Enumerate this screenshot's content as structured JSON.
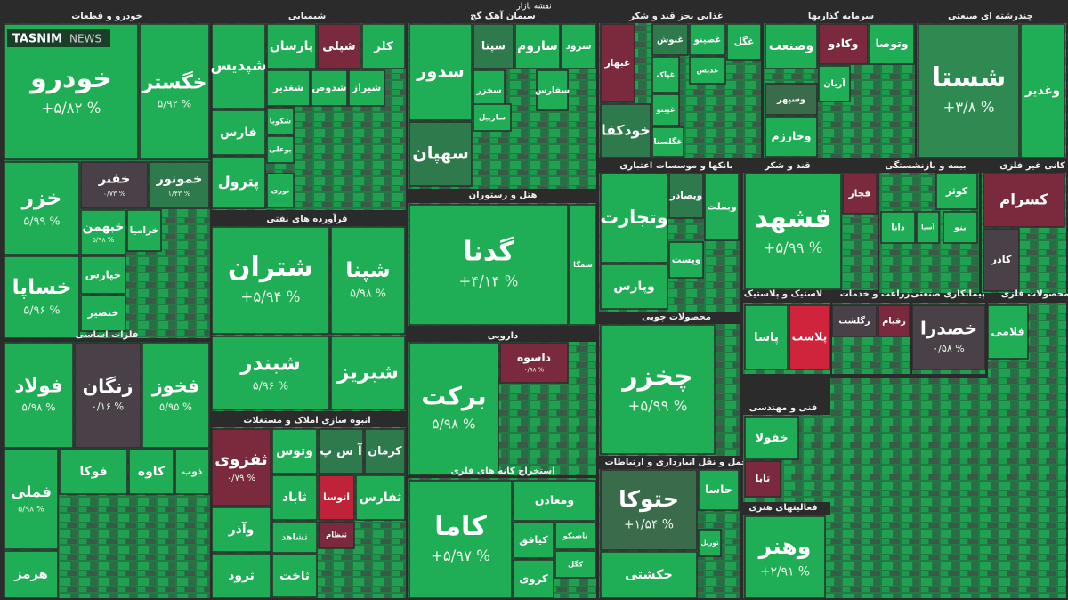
{
  "header": {
    "title": "نقشه بازار"
  },
  "logo": {
    "brand": "TASNIM",
    "suffix": "NEWS"
  },
  "sectors": [
    {
      "title": "خودرو و قطعات",
      "tiles": [
        {
          "label": "خودرو",
          "change": "+۵/۸۲ %",
          "color": "#1fae55"
        },
        {
          "label": "خگستر",
          "change": "۵/۹۲ %",
          "color": "#1fae55"
        },
        {
          "label": "خزر",
          "change": "۵/۹۹ %",
          "color": "#1fae55"
        },
        {
          "label": "خفنر",
          "change": "۰/۷۳ %",
          "color": "#4a4048"
        },
        {
          "label": "خمونور",
          "change": "۱/۴۳ %",
          "color": "#2f7a4c"
        },
        {
          "label": "خساپا",
          "change": "۵/۹۶ %",
          "color": "#1fae55"
        },
        {
          "label": "خبهمن",
          "change": "۵/۹۸ %",
          "color": "#1fae55"
        },
        {
          "label": "خزامیا",
          "color": "#1fae55"
        },
        {
          "label": "خپارس",
          "color": "#1fae55"
        },
        {
          "label": "خنصیر",
          "color": "#1fae55"
        }
      ]
    },
    {
      "title": "فلزات اساسی",
      "tiles": [
        {
          "label": "فولاد",
          "change": "۵/۹۸ %",
          "color": "#1fae55"
        },
        {
          "label": "زنگان",
          "change": "۰/۱۶ %",
          "color": "#4a4048"
        },
        {
          "label": "فخوز",
          "change": "۵/۹۵ %",
          "color": "#1fae55"
        },
        {
          "label": "فملی",
          "change": "۵/۹۸ %",
          "color": "#1fae55"
        },
        {
          "label": "هرمز",
          "color": "#1fae55"
        },
        {
          "label": "فوکا",
          "color": "#1fae55"
        },
        {
          "label": "کاوه",
          "color": "#1fae55"
        },
        {
          "label": "ذوب",
          "color": "#1fae55"
        }
      ]
    },
    {
      "title": "شیمیایی",
      "tiles": [
        {
          "label": "شپدیس",
          "color": "#1fae55"
        },
        {
          "label": "پارسان",
          "color": "#1fae55"
        },
        {
          "label": "شپلی",
          "color": "#7a2a3c"
        },
        {
          "label": "کلر",
          "color": "#1fae55"
        },
        {
          "label": "شغدیر",
          "color": "#1fae55"
        },
        {
          "label": "شدوص",
          "color": "#1fae55"
        },
        {
          "label": "شیراز",
          "color": "#1fae55"
        },
        {
          "label": "فارس",
          "color": "#1fae55"
        },
        {
          "label": "پترول",
          "color": "#1fae55"
        },
        {
          "label": "شکویا",
          "color": "#1fae55"
        },
        {
          "label": "بوعلی",
          "color": "#1fae55"
        },
        {
          "label": "نوری",
          "color": "#1fae55"
        }
      ]
    },
    {
      "title": "فرآورده های نفتی",
      "tiles": [
        {
          "label": "شتران",
          "change": "+۵/۹۴ %",
          "color": "#1fae55"
        },
        {
          "label": "شپنا",
          "change": "۵/۹۸ %",
          "color": "#1fae55"
        },
        {
          "label": "شبندر",
          "change": "۵/۹۶ %",
          "color": "#1fae55"
        },
        {
          "label": "شبریز",
          "color": "#1fae55"
        }
      ]
    },
    {
      "title": "انبوه سازی املاک و مستغلات",
      "tiles": [
        {
          "label": "ثفزوی",
          "change": "۰/۷۹ %",
          "color": "#7a2a3c"
        },
        {
          "label": "وتوس",
          "color": "#1fae55"
        },
        {
          "label": "آ س پ",
          "color": "#2f7a4c"
        },
        {
          "label": "کرمان",
          "color": "#2f7a4c"
        },
        {
          "label": "ثاباد",
          "color": "#1fae55"
        },
        {
          "label": "اتوسا",
          "color": "#c0223a"
        },
        {
          "label": "ثفارس",
          "color": "#1fae55"
        },
        {
          "label": "ثنظام",
          "color": "#7a2a3c"
        },
        {
          "label": "ثشاهد",
          "color": "#1fae55"
        },
        {
          "label": "وآذر",
          "color": "#1fae55"
        },
        {
          "label": "ثرود",
          "color": "#1fae55"
        },
        {
          "label": "ثاخت",
          "color": "#1fae55"
        }
      ]
    },
    {
      "title": "سیمان آهک گچ",
      "tiles": [
        {
          "label": "سدور",
          "color": "#1fae55"
        },
        {
          "label": "سپتا",
          "color": "#2f7a4c"
        },
        {
          "label": "ساروم",
          "color": "#1fae55"
        },
        {
          "label": "سرود",
          "color": "#1fae55"
        },
        {
          "label": "سخزر",
          "color": "#1fae55"
        },
        {
          "label": "سفارس",
          "color": "#1fae55"
        },
        {
          "label": "ساربیل",
          "color": "#1fae55"
        },
        {
          "label": "سهپان",
          "color": "#2f7a4c"
        }
      ]
    },
    {
      "title": "هتل و رستوران",
      "tiles": [
        {
          "label": "گدنا",
          "change": "+۴/۱۴ %",
          "color": "#1fae55"
        },
        {
          "label": "سمگا",
          "color": "#1fae55"
        }
      ]
    },
    {
      "title": "دارویی",
      "tiles": [
        {
          "label": "برکت",
          "change": "۵/۹۸ %",
          "color": "#1fae55"
        },
        {
          "label": "داسوه",
          "change": "۰/۹۸ %",
          "color": "#7a2a3c"
        }
      ]
    },
    {
      "title": "استخراج کانه های فلزی",
      "tiles": [
        {
          "label": "کاما",
          "change": "+۵/۹۷ %",
          "color": "#1fae55"
        },
        {
          "label": "ومعادن",
          "color": "#1fae55"
        },
        {
          "label": "کیافق",
          "color": "#1fae55"
        },
        {
          "label": "تاصیکو",
          "color": "#1fae55"
        },
        {
          "label": "کگل",
          "color": "#1fae55"
        },
        {
          "label": "کروی",
          "color": "#1fae55"
        }
      ]
    },
    {
      "title": "غذایی بجز قند و شکر",
      "tiles": [
        {
          "label": "غبهار",
          "color": "#7a2a3c"
        },
        {
          "label": "غنوش",
          "color": "#2f7a4c"
        },
        {
          "label": "غصینو",
          "color": "#1fae55"
        },
        {
          "label": "غگل",
          "color": "#1fae55"
        },
        {
          "label": "غپاک",
          "color": "#1fae55"
        },
        {
          "label": "غدیس",
          "color": "#1fae55"
        },
        {
          "label": "غپینو",
          "color": "#1fae55"
        },
        {
          "label": "غگلستا",
          "color": "#1fae55"
        },
        {
          "label": "خودکفا",
          "color": "#2f7a4c"
        }
      ]
    },
    {
      "title": "بانکها و موسسات اعتباری",
      "tiles": [
        {
          "label": "وتجارت",
          "color": "#1fae55"
        },
        {
          "label": "وبصادر",
          "color": "#2f7a4c"
        },
        {
          "label": "وبملت",
          "color": "#1fae55"
        },
        {
          "label": "وپست",
          "color": "#1fae55"
        },
        {
          "label": "وپارس",
          "color": "#1fae55"
        }
      ]
    },
    {
      "title": "محصولات چوبی",
      "tiles": [
        {
          "label": "چخزر",
          "change": "+۵/۹۹ %",
          "color": "#1fae55"
        }
      ]
    },
    {
      "title": "حمل و نقل انبارداری و ارتباطات",
      "tiles": [
        {
          "label": "حتوکا",
          "change": "+۱/۵۴ %",
          "color": "#3a6b4b"
        },
        {
          "label": "حکشتی",
          "color": "#1fae55"
        },
        {
          "label": "حاسا",
          "color": "#1fae55"
        },
        {
          "label": "توریل",
          "color": "#1fae55"
        }
      ]
    },
    {
      "title": "سرمایه گذاریها",
      "tiles": [
        {
          "label": "وصنعت",
          "color": "#1fae55"
        },
        {
          "label": "وکادو",
          "color": "#7a2a3c"
        },
        {
          "label": "وتوصا",
          "color": "#1fae55"
        },
        {
          "label": "آریان",
          "color": "#1fae55"
        },
        {
          "label": "وسپهر",
          "color": "#3a6b4b"
        },
        {
          "label": "وخارزم",
          "color": "#1fae55"
        }
      ]
    },
    {
      "title": "چندرشته ای صنعتی",
      "tiles": [
        {
          "label": "شستا",
          "change": "+۳/۸ %",
          "color": "#2f8a52"
        },
        {
          "label": "وغدیر",
          "color": "#1fae55"
        }
      ]
    },
    {
      "title": "قند و شکر",
      "tiles": [
        {
          "label": "قشهد",
          "change": "+۵/۹۹ %",
          "color": "#1fae55"
        },
        {
          "label": "قجار",
          "color": "#7a2a3c"
        }
      ]
    },
    {
      "title": "بیمه و بازنشستگی",
      "tiles": [
        {
          "label": "کوثر",
          "color": "#1fae55"
        },
        {
          "label": "آسیا",
          "color": "#1fae55"
        },
        {
          "label": "دانا",
          "color": "#1fae55"
        },
        {
          "label": "بنو",
          "color": "#1fae55"
        }
      ]
    },
    {
      "title": "کانی غیر فلزی",
      "tiles": [
        {
          "label": "کسرام",
          "color": "#7a2a3c"
        },
        {
          "label": "کاذر",
          "color": "#4a4048"
        }
      ]
    },
    {
      "title": "لاستیک و پلاستیک",
      "tiles": [
        {
          "label": "پاسا",
          "color": "#1fae55"
        },
        {
          "label": "پلاست",
          "color": "#d0243c"
        }
      ]
    },
    {
      "title": "زراعت و خدمات",
      "tiles": [
        {
          "label": "زگلشت",
          "color": "#4a4048"
        },
        {
          "label": "زقیام",
          "color": "#7a2a3c"
        }
      ]
    },
    {
      "title": "پیمانکاری صنعتی",
      "tiles": [
        {
          "label": "خصدرا",
          "change": "۰/۵۸ %",
          "color": "#4a4048"
        }
      ]
    },
    {
      "title": "محصولات فلزی",
      "tiles": [
        {
          "label": "فلامی",
          "color": "#1fae55"
        }
      ]
    },
    {
      "title": "فنی و مهندسی",
      "tiles": [
        {
          "label": "خفولا",
          "color": "#1fae55"
        },
        {
          "label": "تابا",
          "color": "#7a2a3c"
        }
      ]
    },
    {
      "title": "فعالیتهای هنری",
      "tiles": [
        {
          "label": "وهنر",
          "change": "+۲/۹۱ %",
          "color": "#1fae55"
        }
      ]
    }
  ]
}
